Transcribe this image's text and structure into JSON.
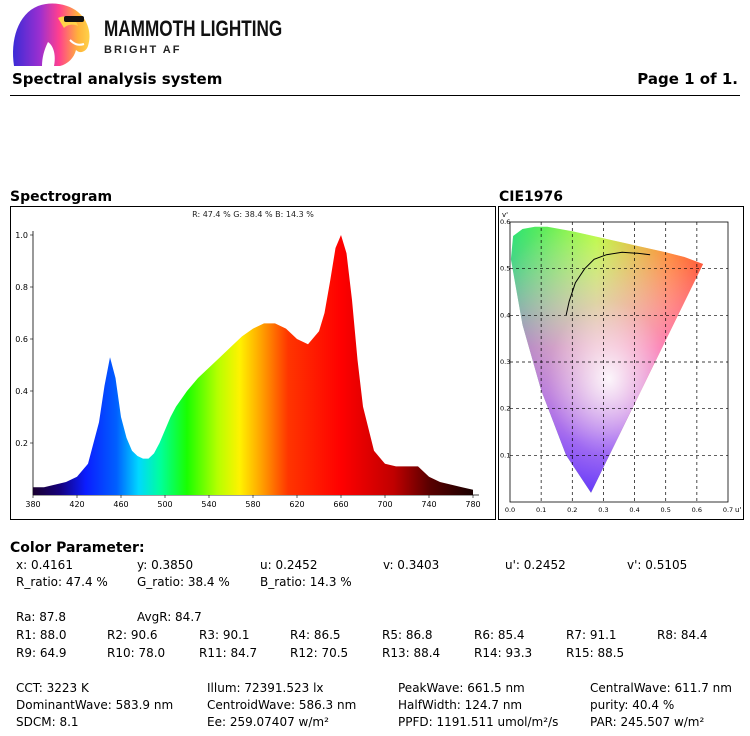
{
  "brand": {
    "name": "MAMMOTH LIGHTING",
    "tagline": "BRIGHT AF"
  },
  "header": {
    "title": "Spectral analysis system",
    "page": "Page 1 of 1."
  },
  "spectrogram": {
    "title": "Spectrogram",
    "ratio_caption": "R: 47.4 %  G: 38.4 %  B: 14.3 %"
  },
  "cie": {
    "title": "CIE1976",
    "axis_y_label": "v'",
    "axis_x_label": "u'",
    "locus_color": "#000000"
  },
  "chart_data": [
    {
      "type": "area",
      "title": "Spectrogram",
      "xlabel": "",
      "ylabel": "",
      "xlim": [
        380,
        780
      ],
      "ylim": [
        0,
        1.0
      ],
      "x_ticks": [
        "380",
        "420",
        "460",
        "500",
        "540",
        "580",
        "620",
        "660",
        "700",
        "740",
        "780"
      ],
      "y_ticks": [
        "0.2",
        "0.4",
        "0.6",
        "0.8",
        "1.0"
      ],
      "grid": false,
      "x": [
        380,
        390,
        400,
        410,
        420,
        430,
        440,
        445,
        450,
        455,
        460,
        465,
        470,
        475,
        480,
        485,
        490,
        495,
        500,
        505,
        510,
        520,
        530,
        540,
        550,
        560,
        570,
        580,
        590,
        600,
        610,
        620,
        630,
        640,
        645,
        650,
        655,
        660,
        665,
        670,
        675,
        680,
        690,
        700,
        710,
        720,
        730,
        740,
        750,
        760,
        770,
        780
      ],
      "values": [
        0.03,
        0.03,
        0.04,
        0.05,
        0.07,
        0.12,
        0.28,
        0.42,
        0.53,
        0.45,
        0.3,
        0.22,
        0.17,
        0.15,
        0.14,
        0.14,
        0.16,
        0.2,
        0.25,
        0.3,
        0.34,
        0.4,
        0.45,
        0.49,
        0.53,
        0.57,
        0.61,
        0.64,
        0.66,
        0.66,
        0.64,
        0.6,
        0.58,
        0.63,
        0.7,
        0.82,
        0.95,
        1.0,
        0.93,
        0.75,
        0.52,
        0.34,
        0.17,
        0.12,
        0.11,
        0.11,
        0.11,
        0.07,
        0.05,
        0.04,
        0.03,
        0.02
      ]
    },
    {
      "type": "scatter",
      "title": "CIE1976",
      "xlim": [
        0.0,
        0.7
      ],
      "ylim": [
        0.0,
        0.6
      ],
      "x_ticks": [
        "0.0",
        "0.1",
        "0.2",
        "0.3",
        "0.4",
        "0.5",
        "0.6",
        "0.7"
      ],
      "y_ticks": [
        "0.1",
        "0.2",
        "0.3",
        "0.4",
        "0.5",
        "0.6"
      ],
      "grid": true,
      "gamut_u": [
        0.26,
        0.18,
        0.1,
        0.04,
        0.003,
        0.01,
        0.04,
        0.08,
        0.12,
        0.2,
        0.3,
        0.4,
        0.5,
        0.56,
        0.62
      ],
      "gamut_v": [
        0.02,
        0.1,
        0.24,
        0.38,
        0.52,
        0.57,
        0.585,
        0.59,
        0.59,
        0.58,
        0.565,
        0.55,
        0.535,
        0.525,
        0.51
      ],
      "locus_u": [
        0.18,
        0.19,
        0.21,
        0.24,
        0.27,
        0.31,
        0.36,
        0.41,
        0.45
      ],
      "locus_v": [
        0.4,
        0.43,
        0.47,
        0.5,
        0.52,
        0.53,
        0.535,
        0.533,
        0.53
      ],
      "point_u": 0.2452,
      "point_v": 0.5105
    }
  ],
  "color_parameter": {
    "title": "Color Parameter:",
    "row1": [
      "x: 0.4161",
      "y: 0.3850",
      "u: 0.2452",
      "v: 0.3403",
      "u': 0.2452",
      "v': 0.5105"
    ],
    "row2": [
      "R_ratio: 47.4 %",
      "G_ratio: 38.4 %",
      "B_ratio: 14.3 %"
    ],
    "ra": "Ra: 87.8",
    "avgr": "AvgR: 84.7",
    "r_row1": [
      "R1: 88.0",
      "R2: 90.6",
      "R3: 90.1",
      "R4: 86.5",
      "R5: 86.8",
      "R6: 85.4",
      "R7: 91.1",
      "R8: 84.4"
    ],
    "r_row2": [
      "R9: 64.9",
      "R10: 78.0",
      "R11: 84.7",
      "R12: 70.5",
      "R13: 88.4",
      "R14: 93.3",
      "R15: 88.5"
    ],
    "m_col1": [
      "CCT: 3223 K",
      "DominantWave: 583.9 nm",
      "SDCM: 8.1"
    ],
    "m_col2": [
      "Illum: 72391.523 lx",
      "CentroidWave: 586.3 nm",
      "Ee: 259.07407 w/m²"
    ],
    "m_col3": [
      "PeakWave: 661.5 nm",
      "HalfWidth: 124.7 nm",
      "PPFD: 1191.511 umol/m²/s"
    ],
    "m_col4": [
      "CentralWave: 611.7 nm",
      "purity: 40.4 %",
      "PAR: 245.507 w/m²"
    ]
  }
}
